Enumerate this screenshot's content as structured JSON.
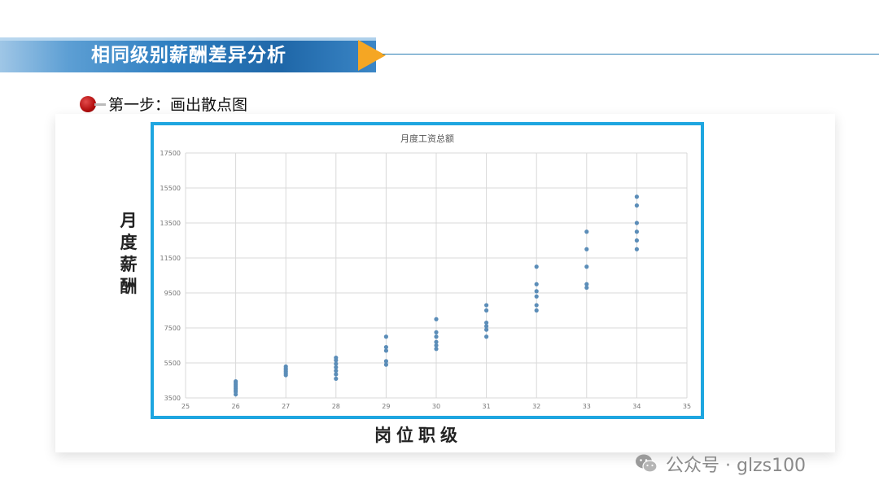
{
  "banner": {
    "title": "相同级别薪酬差异分析"
  },
  "step": {
    "label": "第一步：画出散点图"
  },
  "axis_labels": {
    "y": "月度薪酬",
    "x": "岗位职级"
  },
  "watermark": {
    "text": "公众号 · glzs100",
    "icon": "wechat-icon"
  },
  "colors": {
    "accent": "#1ea6e0",
    "point": "#5b8db8",
    "arrow": "#f5a623",
    "banner": "#2f7fc1",
    "bullet": "#b30f0f"
  },
  "chart_data": {
    "type": "scatter",
    "title": "月度工资总额",
    "xlim": [
      25,
      35
    ],
    "ylim": [
      3500,
      17500
    ],
    "xticks": [
      "25",
      "26",
      "27",
      "28",
      "29",
      "30",
      "31",
      "32",
      "33",
      "34",
      "35"
    ],
    "yticks": [
      "3500",
      "5500",
      "7500",
      "9500",
      "11500",
      "13500",
      "15500",
      "17500"
    ],
    "grid": true,
    "legend": "none",
    "points": [
      {
        "x": 26,
        "y": 3700
      },
      {
        "x": 26,
        "y": 3850
      },
      {
        "x": 26,
        "y": 3950
      },
      {
        "x": 26,
        "y": 4050
      },
      {
        "x": 26,
        "y": 4150
      },
      {
        "x": 26,
        "y": 4250
      },
      {
        "x": 26,
        "y": 4350
      },
      {
        "x": 26,
        "y": 4450
      },
      {
        "x": 27,
        "y": 4800
      },
      {
        "x": 27,
        "y": 4900
      },
      {
        "x": 27,
        "y": 5000
      },
      {
        "x": 27,
        "y": 5100
      },
      {
        "x": 27,
        "y": 5200
      },
      {
        "x": 27,
        "y": 5300
      },
      {
        "x": 28,
        "y": 4600
      },
      {
        "x": 28,
        "y": 4850
      },
      {
        "x": 28,
        "y": 5050
      },
      {
        "x": 28,
        "y": 5250
      },
      {
        "x": 28,
        "y": 5450
      },
      {
        "x": 28,
        "y": 5650
      },
      {
        "x": 28,
        "y": 5800
      },
      {
        "x": 29,
        "y": 5400
      },
      {
        "x": 29,
        "y": 5600
      },
      {
        "x": 29,
        "y": 6200
      },
      {
        "x": 29,
        "y": 6400
      },
      {
        "x": 29,
        "y": 7000
      },
      {
        "x": 30,
        "y": 6300
      },
      {
        "x": 30,
        "y": 6500
      },
      {
        "x": 30,
        "y": 6700
      },
      {
        "x": 30,
        "y": 7000
      },
      {
        "x": 30,
        "y": 7250
      },
      {
        "x": 30,
        "y": 8000
      },
      {
        "x": 31,
        "y": 7000
      },
      {
        "x": 31,
        "y": 7400
      },
      {
        "x": 31,
        "y": 7600
      },
      {
        "x": 31,
        "y": 7800
      },
      {
        "x": 31,
        "y": 8500
      },
      {
        "x": 31,
        "y": 8800
      },
      {
        "x": 32,
        "y": 8500
      },
      {
        "x": 32,
        "y": 8800
      },
      {
        "x": 32,
        "y": 9300
      },
      {
        "x": 32,
        "y": 9600
      },
      {
        "x": 32,
        "y": 10000
      },
      {
        "x": 32,
        "y": 11000
      },
      {
        "x": 33,
        "y": 9800
      },
      {
        "x": 33,
        "y": 10000
      },
      {
        "x": 33,
        "y": 11000
      },
      {
        "x": 33,
        "y": 12000
      },
      {
        "x": 33,
        "y": 13000
      },
      {
        "x": 34,
        "y": 12000
      },
      {
        "x": 34,
        "y": 12500
      },
      {
        "x": 34,
        "y": 13000
      },
      {
        "x": 34,
        "y": 13500
      },
      {
        "x": 34,
        "y": 14500
      },
      {
        "x": 34,
        "y": 15000
      }
    ]
  }
}
